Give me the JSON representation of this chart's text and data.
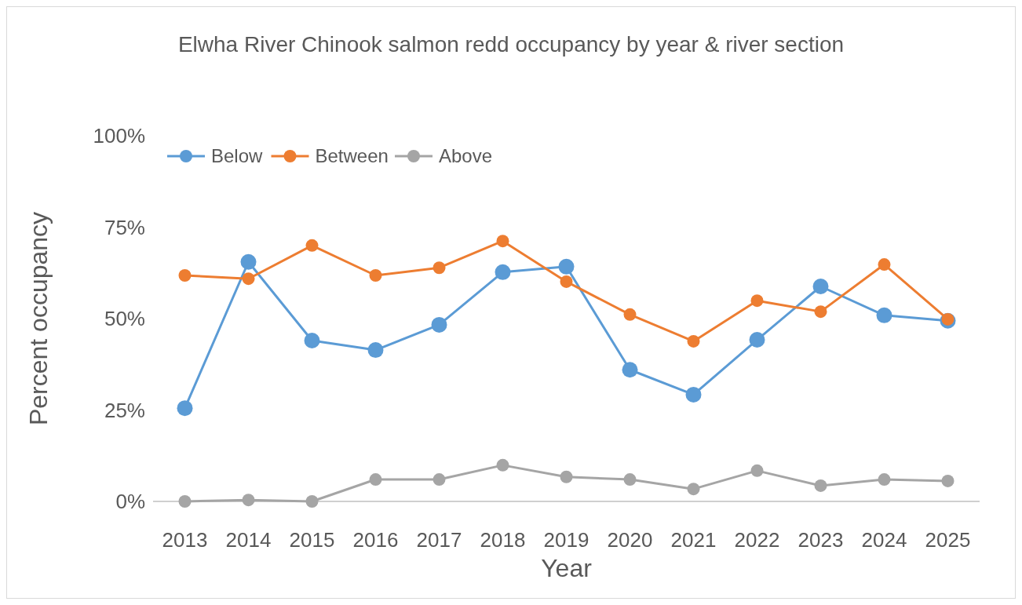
{
  "chart_data": {
    "type": "line",
    "title": "Elwha River Chinook salmon redd occupancy by year & river section",
    "xlabel": "Year",
    "ylabel": "Percent occupancy",
    "categories": [
      "2013",
      "2014",
      "2015",
      "2016",
      "2017",
      "2018",
      "2019",
      "2020",
      "2021",
      "2022",
      "2023",
      "2024",
      "2025"
    ],
    "series": [
      {
        "name": "Below",
        "color": "#5b9bd5",
        "values": [
          25.5,
          65.5,
          44,
          41.4,
          48.3,
          62.7,
          64.2,
          36,
          29.2,
          44.2,
          58.8,
          50.9,
          49.4
        ]
      },
      {
        "name": "Between",
        "color": "#ed7d31",
        "values": [
          61.8,
          60.9,
          70,
          61.8,
          63.9,
          71.2,
          60.1,
          51.1,
          43.8,
          54.9,
          51.9,
          64.8,
          49.8
        ]
      },
      {
        "name": "Above",
        "color": "#a5a5a5",
        "values": [
          0,
          0.4,
          0,
          6,
          6,
          9.9,
          6.7,
          6,
          3.4,
          8.4,
          4.3,
          6,
          5.6
        ]
      }
    ],
    "ylim": [
      0,
      100
    ],
    "yticks": [
      {
        "value": 0,
        "label": "0%"
      },
      {
        "value": 25,
        "label": "25%"
      },
      {
        "value": 50,
        "label": "50%"
      },
      {
        "value": 75,
        "label": "75%"
      },
      {
        "value": 100,
        "label": "100%"
      }
    ],
    "legend": "top left",
    "marker": "circle",
    "line_style": "solid"
  }
}
